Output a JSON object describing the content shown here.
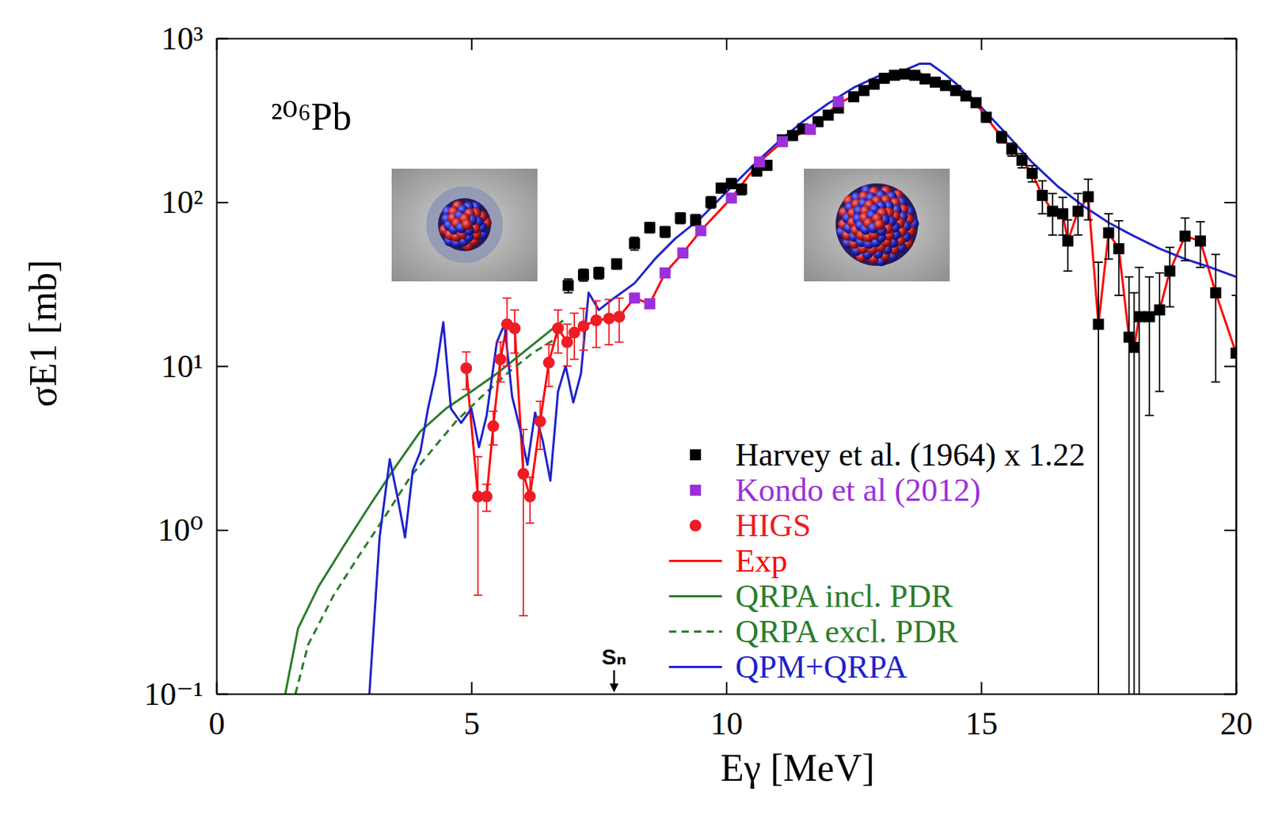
{
  "chart_data": {
    "type": "line",
    "title": "²⁰⁶Pb",
    "x_label": "Eγ [MeV]",
    "y_label": "σE1 [mb]",
    "xlim": [
      0,
      20
    ],
    "ylim": [
      0.1,
      1000
    ],
    "xticks": [
      0,
      5,
      10,
      15,
      20
    ],
    "yticks": [
      {
        "value": 0.1,
        "label": "10⁻¹"
      },
      {
        "value": 1,
        "label": "10⁰"
      },
      {
        "value": 10,
        "label": "10¹"
      },
      {
        "value": 100,
        "label": "10²"
      },
      {
        "value": 1000,
        "label": "10³"
      }
    ],
    "log": "y",
    "grid": false,
    "legend": "lower right",
    "annotations": [
      {
        "text": "Sₙ",
        "x": 7.8
      }
    ],
    "series": [
      {
        "name": "Harvey et al. (1964) x 1.22",
        "type": "scatter",
        "marker": "square",
        "color": "#000000",
        "x": [
          6.9,
          7.2,
          7.5,
          7.85,
          8.2,
          8.5,
          8.8,
          9.1,
          9.4,
          9.7,
          9.9,
          10.1,
          10.3,
          10.6,
          10.8,
          11.1,
          11.3,
          11.5,
          11.8,
          12.0,
          12.2,
          12.5,
          12.7,
          12.9,
          13.1,
          13.3,
          13.5,
          13.7,
          13.9,
          14.1,
          14.3,
          14.5,
          14.7,
          14.9,
          15.1,
          15.4,
          15.6,
          15.8,
          16.0,
          16.2,
          16.4,
          16.6,
          16.7,
          16.9,
          17.1,
          17.3,
          17.5,
          17.7,
          17.9,
          18.0,
          18.1,
          18.3,
          18.5,
          18.7,
          19.0,
          19.3,
          19.6,
          20.0
        ],
        "values": [
          31,
          36,
          37,
          42,
          56,
          70,
          66,
          80,
          78,
          100,
          122,
          130,
          120,
          155,
          168,
          240,
          255,
          280,
          310,
          340,
          375,
          440,
          480,
          525,
          570,
          595,
          605,
          595,
          565,
          540,
          515,
          480,
          445,
          405,
          330,
          250,
          210,
          180,
          150,
          110,
          88,
          85,
          58,
          88,
          108,
          18,
          65,
          52,
          15,
          13,
          20,
          20,
          22,
          38,
          62,
          58,
          28,
          12
        ],
        "errors": [
          3,
          3,
          3,
          3,
          5,
          5,
          5,
          6,
          6,
          8,
          8,
          9,
          9,
          10,
          11,
          14,
          14,
          15,
          16,
          17,
          18,
          20,
          22,
          24,
          26,
          27,
          28,
          28,
          28,
          27,
          27,
          26,
          25,
          24,
          22,
          20,
          19,
          18,
          17,
          25,
          25,
          22,
          20,
          25,
          30,
          25,
          20,
          25,
          20,
          15,
          20,
          15,
          15,
          15,
          18,
          18,
          20,
          15
        ]
      },
      {
        "name": "Kondo et al (2012)",
        "type": "scatter",
        "marker": "square",
        "color": "#9b30d9",
        "x": [
          8.2,
          8.5,
          8.8,
          9.15,
          9.5,
          10.1,
          10.65,
          11.1,
          11.65,
          12.2
        ],
        "values": [
          26,
          24,
          37,
          49,
          67,
          106,
          176,
          234,
          278,
          410
        ]
      },
      {
        "name": "HIGS",
        "type": "scatter",
        "marker": "circle",
        "color": "#ee1c24",
        "x": [
          4.9,
          5.13,
          5.3,
          5.43,
          5.57,
          5.7,
          5.85,
          6.02,
          6.15,
          6.35,
          6.52,
          6.7,
          6.88,
          7.02,
          7.2,
          7.45,
          7.7,
          7.9
        ],
        "values": [
          9.7,
          1.6,
          1.6,
          4.3,
          11,
          18,
          17,
          2.2,
          1.6,
          4.6,
          10.5,
          17,
          14,
          16,
          17.5,
          19,
          19.5,
          20
        ],
        "errors": [
          2.5,
          1.2,
          0.3,
          1,
          3,
          8,
          5,
          1.9,
          0.5,
          1.5,
          3,
          5,
          4,
          5,
          5,
          6,
          6,
          6
        ]
      },
      {
        "name": "Exp",
        "type": "line",
        "line_style": "solid",
        "color": "#ff0000",
        "x": [
          4.9,
          5.13,
          5.3,
          5.43,
          5.57,
          5.7,
          5.85,
          6.02,
          6.15,
          6.35,
          6.52,
          6.7,
          6.88,
          7.02,
          7.2,
          7.45,
          7.7,
          7.9,
          8.2,
          8.5,
          8.8,
          9.15,
          9.5,
          10.1,
          10.65,
          11.1,
          11.65,
          12.2,
          12.7,
          13.1,
          13.5,
          13.8,
          14.1,
          14.5,
          14.9,
          15.1,
          15.4,
          15.6,
          15.8,
          16.0,
          16.2,
          16.4,
          16.6,
          16.7,
          16.9,
          17.1,
          17.3,
          17.5,
          17.7,
          17.9,
          18.0,
          18.1,
          18.3,
          18.5,
          18.7,
          19.0,
          19.3,
          19.6,
          20.0
        ],
        "values": [
          9.7,
          1.6,
          1.6,
          4.3,
          11,
          18,
          17,
          2.2,
          1.6,
          4.6,
          10.5,
          17,
          14,
          16,
          17.5,
          19,
          19.5,
          20,
          26,
          24,
          37,
          49,
          67,
          106,
          176,
          234,
          278,
          400,
          480,
          560,
          600,
          610,
          560,
          480,
          400,
          330,
          250,
          210,
          180,
          150,
          110,
          88,
          85,
          58,
          88,
          108,
          18,
          65,
          52,
          15,
          13,
          20,
          20,
          22,
          38,
          62,
          58,
          28,
          12
        ]
      },
      {
        "name": "QRPA incl. PDR",
        "type": "line",
        "line_style": "solid",
        "color": "#2a7d2a",
        "x": [
          1.35,
          1.6,
          2.0,
          2.5,
          3.0,
          3.5,
          4.0,
          4.5,
          5.0,
          5.5,
          6.0,
          6.5,
          6.8
        ],
        "values": [
          0.1,
          0.25,
          0.45,
          0.8,
          1.4,
          2.4,
          4,
          5.5,
          7,
          9,
          12,
          16,
          19
        ]
      },
      {
        "name": "QRPA excl. PDR",
        "type": "line",
        "line_style": "dashed",
        "color": "#2a7d2a",
        "x": [
          1.55,
          1.8,
          2.3,
          2.8,
          3.3,
          3.8,
          4.2,
          4.7,
          5.2,
          5.7,
          6.2,
          6.7
        ],
        "values": [
          0.1,
          0.2,
          0.4,
          0.7,
          1.2,
          2.1,
          3.0,
          4.6,
          6.5,
          9,
          12,
          15
        ]
      },
      {
        "name": "QPM+QRPA",
        "type": "line",
        "line_style": "solid",
        "color": "#1e22cc",
        "x": [
          3.0,
          3.2,
          3.4,
          3.55,
          3.7,
          3.85,
          4.0,
          4.15,
          4.3,
          4.45,
          4.6,
          4.8,
          5.0,
          5.15,
          5.3,
          5.5,
          5.65,
          5.8,
          5.95,
          6.1,
          6.25,
          6.4,
          6.55,
          6.7,
          6.85,
          7.0,
          7.15,
          7.3,
          7.5,
          7.8,
          8.2,
          8.6,
          9.0,
          9.5,
          10.0,
          10.5,
          11.0,
          11.5,
          12.0,
          12.5,
          13.0,
          13.5,
          13.8,
          14.0,
          14.3,
          14.7,
          15.0,
          15.5,
          16.0,
          16.5,
          17.0,
          17.5,
          18.0,
          18.5,
          19.0,
          19.5,
          20.0
        ],
        "values": [
          0.1,
          0.9,
          2.7,
          1.6,
          0.9,
          2.3,
          3.0,
          5.5,
          9,
          18.5,
          5.5,
          4.5,
          5.5,
          3.2,
          5,
          14,
          18,
          6.5,
          4.2,
          2.5,
          5.2,
          3.5,
          2.0,
          7,
          10,
          6,
          9,
          28,
          22,
          26,
          32,
          45,
          60,
          80,
          115,
          165,
          230,
          310,
          400,
          500,
          590,
          640,
          700,
          700,
          600,
          470,
          380,
          260,
          175,
          125,
          95,
          75,
          62,
          52,
          45,
          40,
          35
        ]
      }
    ]
  }
}
